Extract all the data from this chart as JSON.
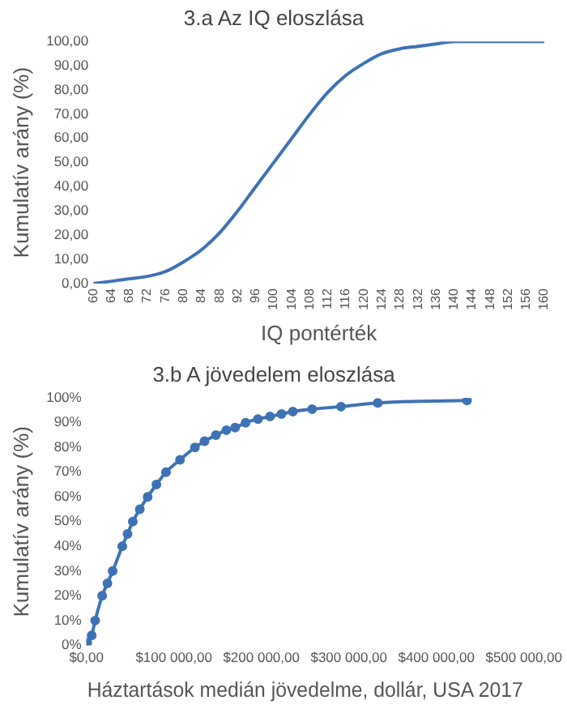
{
  "chart_data": [
    {
      "type": "line",
      "title": "3.a Az IQ eloszlása",
      "xlabel": "IQ pontérték",
      "ylabel": "Kumulatív arány (%)",
      "color": "#3d72b4",
      "marker": "none",
      "grid": false,
      "legend": false,
      "x": [
        60,
        64,
        68,
        72,
        76,
        80,
        84,
        88,
        92,
        96,
        100,
        104,
        108,
        112,
        116,
        120,
        124,
        128,
        132,
        136,
        140,
        144,
        148,
        152,
        156,
        160
      ],
      "values": [
        0,
        1,
        2,
        3,
        5,
        9,
        14,
        21,
        30,
        40,
        50,
        60,
        70,
        79,
        86,
        91,
        95,
        97,
        98,
        99,
        100,
        100,
        100,
        100,
        100,
        100
      ],
      "xlim": [
        60,
        160
      ],
      "xticks": [
        60,
        64,
        68,
        72,
        76,
        80,
        84,
        88,
        92,
        96,
        100,
        104,
        108,
        112,
        116,
        120,
        124,
        128,
        132,
        136,
        140,
        144,
        148,
        152,
        156,
        160
      ],
      "ylim": [
        0,
        100
      ],
      "yticks": [
        {
          "value": 0,
          "label": "0,00"
        },
        {
          "value": 10,
          "label": "10,00"
        },
        {
          "value": 20,
          "label": "20,00"
        },
        {
          "value": 30,
          "label": "30,00"
        },
        {
          "value": 40,
          "label": "40,00"
        },
        {
          "value": 50,
          "label": "50,00"
        },
        {
          "value": 60,
          "label": "60,00"
        },
        {
          "value": 70,
          "label": "70,00"
        },
        {
          "value": 80,
          "label": "80,00"
        },
        {
          "value": 90,
          "label": "90,00"
        },
        {
          "value": 100,
          "label": "100,00"
        }
      ]
    },
    {
      "type": "line",
      "title": "3.b A jövedelem eloszlása",
      "xlabel": "Háztartások medián jövedelme, dollár, USA 2017",
      "ylabel": "Kumulatív arány (%)",
      "color": "#3d72b4",
      "marker": "circle",
      "grid": false,
      "legend": false,
      "x": [
        1000,
        6000,
        10000,
        18000,
        24000,
        30000,
        41000,
        47000,
        53000,
        61000,
        70000,
        80000,
        91000,
        107000,
        124000,
        135000,
        148000,
        160000,
        170000,
        182000,
        196000,
        210000,
        223000,
        236000,
        258000,
        291000,
        333000,
        435000
      ],
      "values": [
        1,
        4,
        10,
        20,
        25,
        30,
        40,
        45,
        50,
        55,
        60,
        65,
        70,
        75,
        80,
        82.5,
        85,
        87,
        88,
        90,
        91.5,
        92.5,
        93.5,
        94.5,
        95.5,
        96.5,
        98,
        99
      ],
      "xlim": [
        0,
        500000
      ],
      "xticks": [
        {
          "value": 0,
          "label": "$0,00"
        },
        {
          "value": 100000,
          "label": "$100 000,00"
        },
        {
          "value": 200000,
          "label": "$200 000,00"
        },
        {
          "value": 300000,
          "label": "$300 000,00"
        },
        {
          "value": 400000,
          "label": "$400 000,00"
        },
        {
          "value": 500000,
          "label": "$500 000,00"
        }
      ],
      "ylim": [
        0,
        100
      ],
      "yticks": [
        {
          "value": 0,
          "label": "0%"
        },
        {
          "value": 10,
          "label": "10%"
        },
        {
          "value": 20,
          "label": "20%"
        },
        {
          "value": 30,
          "label": "30%"
        },
        {
          "value": 40,
          "label": "40%"
        },
        {
          "value": 50,
          "label": "50%"
        },
        {
          "value": 60,
          "label": "60%"
        },
        {
          "value": 70,
          "label": "70%"
        },
        {
          "value": 80,
          "label": "80%"
        },
        {
          "value": 90,
          "label": "90%"
        },
        {
          "value": 100,
          "label": "100%"
        }
      ]
    }
  ]
}
